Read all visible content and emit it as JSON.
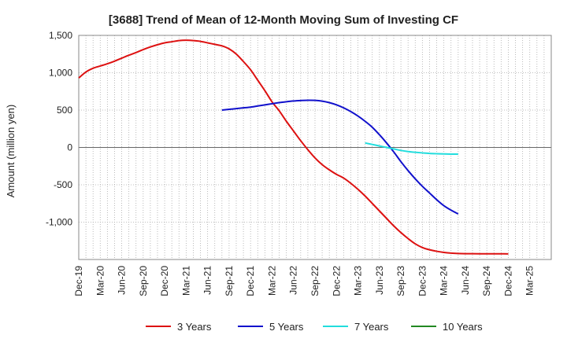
{
  "chart_data": {
    "type": "line",
    "title": "[3688]  Trend of Mean of 12-Month Moving Sum of Investing CF",
    "xlabel": "",
    "ylabel": "Amount (million yen)",
    "ylim": [
      -1500,
      1500
    ],
    "yticks": [
      1500,
      1000,
      500,
      0,
      -500,
      -1000
    ],
    "ytick_labels": [
      "1,500",
      "1,000",
      "500",
      "0",
      "-500",
      "-1,000"
    ],
    "x_range": [
      0,
      66
    ],
    "x_ticks": [
      {
        "label": "Dec-19",
        "x": 0
      },
      {
        "label": "Mar-20",
        "x": 3
      },
      {
        "label": "Jun-20",
        "x": 6
      },
      {
        "label": "Sep-20",
        "x": 9
      },
      {
        "label": "Dec-20",
        "x": 12
      },
      {
        "label": "Mar-21",
        "x": 15
      },
      {
        "label": "Jun-21",
        "x": 18
      },
      {
        "label": "Sep-21",
        "x": 21
      },
      {
        "label": "Dec-21",
        "x": 24
      },
      {
        "label": "Mar-22",
        "x": 27
      },
      {
        "label": "Jun-22",
        "x": 30
      },
      {
        "label": "Sep-22",
        "x": 33
      },
      {
        "label": "Dec-22",
        "x": 36
      },
      {
        "label": "Mar-23",
        "x": 39
      },
      {
        "label": "Jun-23",
        "x": 42
      },
      {
        "label": "Sep-23",
        "x": 45
      },
      {
        "label": "Dec-23",
        "x": 48
      },
      {
        "label": "Mar-24",
        "x": 51
      },
      {
        "label": "Jun-24",
        "x": 54
      },
      {
        "label": "Sep-24",
        "x": 57
      },
      {
        "label": "Dec-24",
        "x": 60
      },
      {
        "label": "Mar-25",
        "x": 63
      }
    ],
    "grid": true,
    "legend_position": "bottom",
    "series": [
      {
        "name": "3 Years",
        "color": "#dd1111",
        "points": [
          [
            0,
            930
          ],
          [
            1,
            1010
          ],
          [
            2,
            1060
          ],
          [
            3,
            1090
          ],
          [
            4,
            1120
          ],
          [
            5,
            1155
          ],
          [
            6,
            1195
          ],
          [
            7,
            1235
          ],
          [
            8,
            1270
          ],
          [
            9,
            1310
          ],
          [
            10,
            1345
          ],
          [
            11,
            1375
          ],
          [
            12,
            1400
          ],
          [
            13,
            1415
          ],
          [
            14,
            1430
          ],
          [
            15,
            1435
          ],
          [
            16,
            1430
          ],
          [
            17,
            1420
          ],
          [
            18,
            1400
          ],
          [
            19,
            1380
          ],
          [
            20,
            1360
          ],
          [
            21,
            1320
          ],
          [
            22,
            1250
          ],
          [
            23,
            1150
          ],
          [
            24,
            1040
          ],
          [
            25,
            900
          ],
          [
            26,
            760
          ],
          [
            27,
            610
          ],
          [
            28,
            490
          ],
          [
            29,
            350
          ],
          [
            30,
            220
          ],
          [
            31,
            90
          ],
          [
            32,
            -30
          ],
          [
            33,
            -140
          ],
          [
            34,
            -230
          ],
          [
            35,
            -300
          ],
          [
            36,
            -360
          ],
          [
            37,
            -410
          ],
          [
            38,
            -480
          ],
          [
            39,
            -560
          ],
          [
            40,
            -650
          ],
          [
            41,
            -750
          ],
          [
            42,
            -850
          ],
          [
            43,
            -950
          ],
          [
            44,
            -1050
          ],
          [
            45,
            -1140
          ],
          [
            46,
            -1220
          ],
          [
            47,
            -1290
          ],
          [
            48,
            -1340
          ],
          [
            49,
            -1370
          ],
          [
            50,
            -1390
          ],
          [
            51,
            -1405
          ],
          [
            52,
            -1415
          ],
          [
            53,
            -1420
          ],
          [
            54,
            -1422
          ],
          [
            55,
            -1422
          ],
          [
            56,
            -1423
          ],
          [
            57,
            -1424
          ],
          [
            58,
            -1424
          ],
          [
            59,
            -1424
          ],
          [
            60,
            -1425
          ]
        ]
      },
      {
        "name": "5 Years",
        "color": "#1111cc",
        "points": [
          [
            20,
            500
          ],
          [
            21,
            510
          ],
          [
            22,
            520
          ],
          [
            23,
            530
          ],
          [
            24,
            540
          ],
          [
            25,
            555
          ],
          [
            26,
            570
          ],
          [
            27,
            585
          ],
          [
            28,
            600
          ],
          [
            29,
            612
          ],
          [
            30,
            622
          ],
          [
            31,
            628
          ],
          [
            32,
            632
          ],
          [
            33,
            630
          ],
          [
            34,
            620
          ],
          [
            35,
            600
          ],
          [
            36,
            570
          ],
          [
            37,
            530
          ],
          [
            38,
            480
          ],
          [
            39,
            420
          ],
          [
            40,
            350
          ],
          [
            41,
            270
          ],
          [
            42,
            170
          ],
          [
            43,
            60
          ],
          [
            44,
            -60
          ],
          [
            45,
            -190
          ],
          [
            46,
            -310
          ],
          [
            47,
            -420
          ],
          [
            48,
            -520
          ],
          [
            49,
            -610
          ],
          [
            50,
            -700
          ],
          [
            51,
            -780
          ],
          [
            52,
            -840
          ],
          [
            53,
            -890
          ]
        ]
      },
      {
        "name": "7 Years",
        "color": "#22dddd",
        "points": [
          [
            40,
            60
          ],
          [
            41,
            40
          ],
          [
            42,
            20
          ],
          [
            43,
            0
          ],
          [
            44,
            -20
          ],
          [
            45,
            -40
          ],
          [
            46,
            -55
          ],
          [
            47,
            -65
          ],
          [
            48,
            -73
          ],
          [
            49,
            -80
          ],
          [
            50,
            -84
          ],
          [
            51,
            -87
          ],
          [
            52,
            -89
          ],
          [
            53,
            -90
          ]
        ]
      },
      {
        "name": "10 Years",
        "color": "#228822",
        "points": []
      }
    ]
  }
}
